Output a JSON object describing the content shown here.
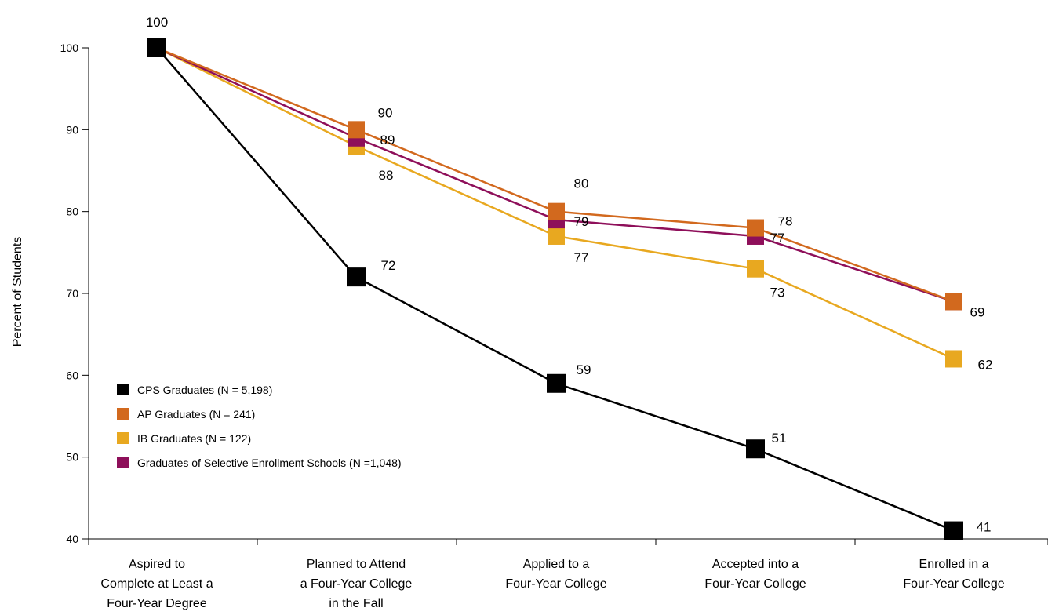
{
  "chart_data": {
    "type": "line",
    "ylabel": "Percent of Students",
    "ylim": [
      40,
      100
    ],
    "yticks": [
      40,
      50,
      60,
      70,
      80,
      90,
      100
    ],
    "grid": false,
    "legend_position": "bottom-left",
    "categories": [
      [
        "Aspired to",
        "Complete at Least a",
        "Four-Year Degree"
      ],
      [
        "Planned to Attend",
        "a Four-Year College",
        "in the Fall"
      ],
      [
        "Applied to a",
        "Four-Year College"
      ],
      [
        "Accepted into a",
        "Four-Year College"
      ],
      [
        "Enrolled in a",
        "Four-Year College"
      ]
    ],
    "series": [
      {
        "name": "IB Graduates (N = 122)",
        "color": "#E8A820",
        "values": [
          100,
          88,
          77,
          73,
          62
        ],
        "labels": [
          "",
          "88",
          "77",
          "73",
          "62"
        ]
      },
      {
        "name": "Graduates of Selective Enrollment Schools (N =1,048)",
        "color": "#8E0F5A",
        "values": [
          100,
          89,
          79,
          77,
          69
        ],
        "labels": [
          "",
          "89",
          "79",
          "77",
          ""
        ]
      },
      {
        "name": "AP Graduates (N = 241)",
        "color": "#D2691E",
        "values": [
          100,
          90,
          80,
          78,
          69
        ],
        "labels": [
          "",
          "90",
          "80",
          "78",
          "69"
        ]
      },
      {
        "name": "CPS Graduates (N = 5,198)",
        "color": "#000000",
        "values": [
          100,
          72,
          59,
          51,
          41
        ],
        "labels": [
          "100",
          "72",
          "59",
          "51",
          "41"
        ]
      }
    ],
    "legend_order": [
      3,
      2,
      0,
      1
    ]
  }
}
